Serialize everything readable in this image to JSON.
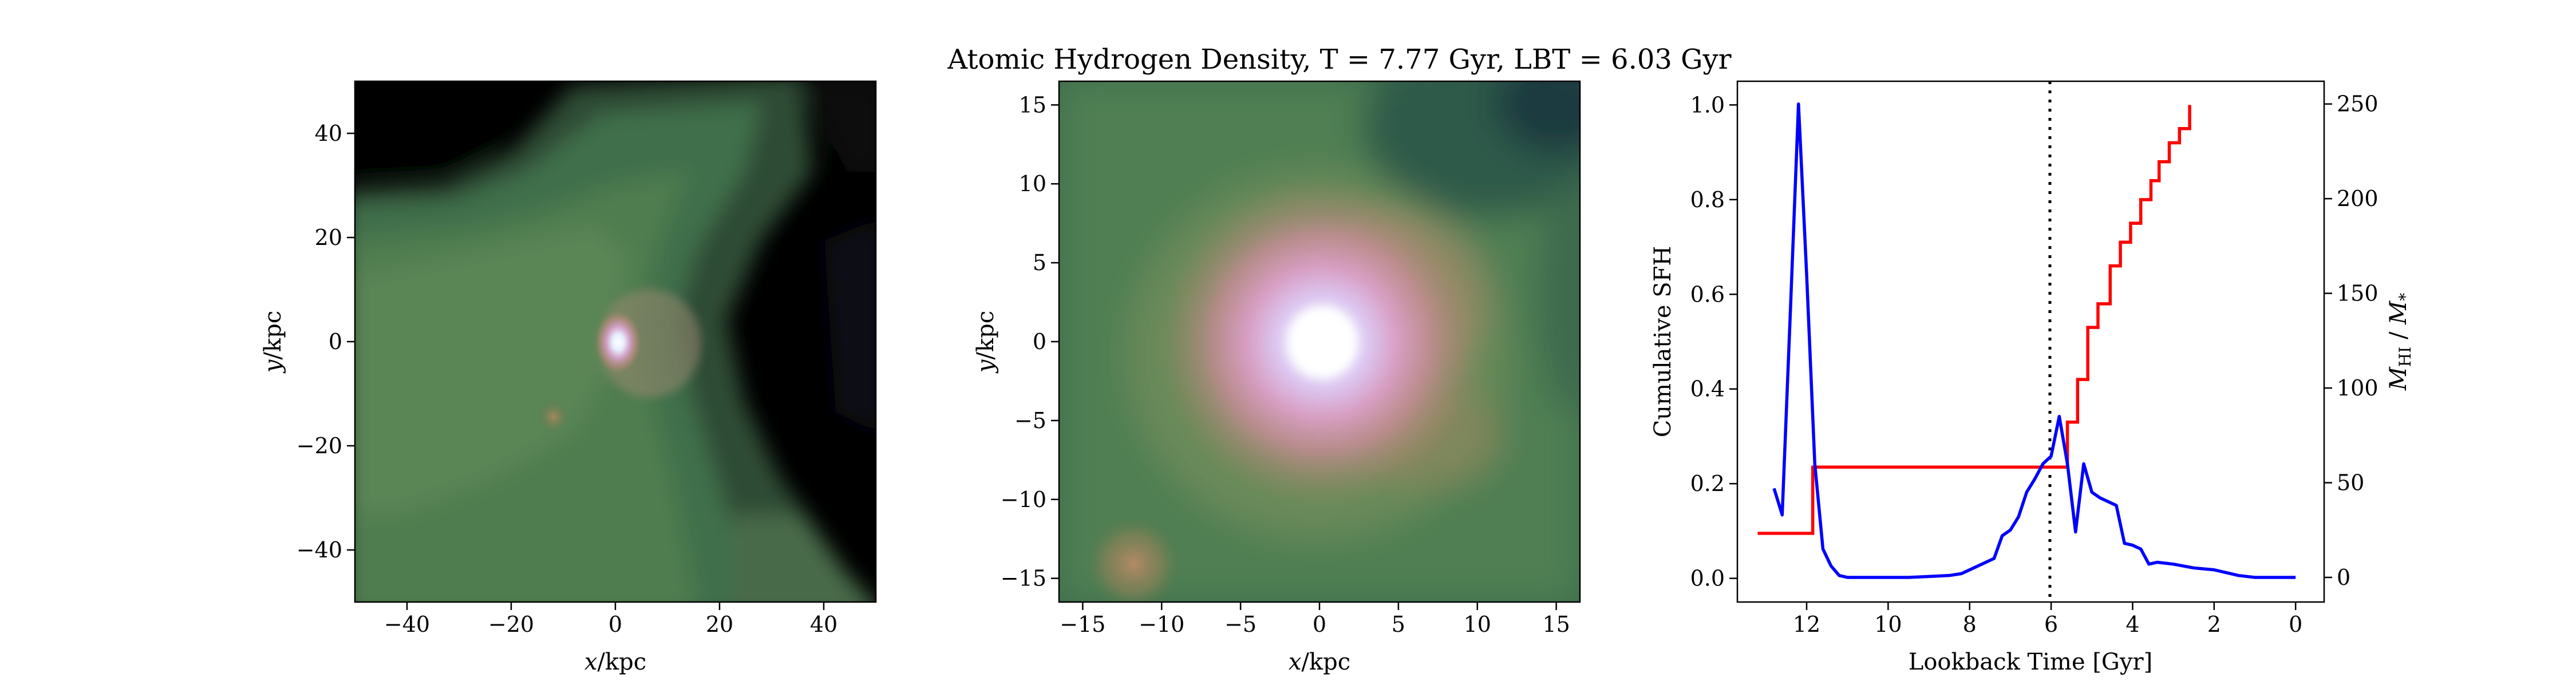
{
  "figure": {
    "title": "Atomic Hydrogen Density, T = 7.77 Gyr, LBT = 6.03 Gyr"
  },
  "chart_data": [
    {
      "type": "heatmap",
      "panel": "left",
      "xlabel_var": "x",
      "xlabel_unit": "/kpc",
      "ylabel_var": "y",
      "ylabel_unit": "/kpc",
      "xlim": [
        -50,
        50
      ],
      "ylim": [
        -50,
        50
      ],
      "xticks": [
        -40,
        -20,
        0,
        20,
        40
      ],
      "yticks": [
        -40,
        -20,
        0,
        20,
        40
      ],
      "colormap": "cubehelix (dark purple → green → pink → white)"
    },
    {
      "type": "heatmap",
      "panel": "middle",
      "xlabel_var": "x",
      "xlabel_unit": "/kpc",
      "ylabel_var": "y",
      "ylabel_unit": "/kpc",
      "xlim": [
        -16.5,
        16.5
      ],
      "ylim": [
        -16.5,
        16.5
      ],
      "xticks": [
        -15,
        -10,
        -5,
        0,
        5,
        10,
        15
      ],
      "yticks": [
        -15,
        -10,
        -5,
        0,
        5,
        10,
        15
      ],
      "colormap": "cubehelix (dark purple → green → pink → white)"
    },
    {
      "type": "line",
      "panel": "right",
      "xlabel": "Lookback Time [Gyr]",
      "ylabel_left": "Cumulative SFH",
      "ylabel_right_main": "M",
      "ylabel_right_sub": "HI",
      "ylabel_right_sep": " / ",
      "ylabel_right_main2": "M",
      "ylabel_right_sub2": "*",
      "xlim": [
        13.7,
        -0.7
      ],
      "ylim_left": [
        -0.05,
        1.05
      ],
      "ylim_right": [
        -13,
        262
      ],
      "xticks": [
        12,
        10,
        8,
        6,
        4,
        2,
        0
      ],
      "yticks_left": [
        0.0,
        0.2,
        0.4,
        0.6,
        0.8,
        1.0
      ],
      "yticks_left_labels": [
        "0.0",
        "0.2",
        "0.4",
        "0.6",
        "0.8",
        "1.0"
      ],
      "yticks_right": [
        0,
        50,
        100,
        150,
        200,
        250
      ],
      "vline_x": 6.03,
      "vline_style": "dotted",
      "series": [
        {
          "axis": "left",
          "color": "#ff0000",
          "step": true,
          "x": [
            13.2,
            12.05,
            11.85,
            10,
            8,
            6.2,
            5.6,
            5.35,
            5.1,
            4.85,
            4.55,
            4.3,
            4.05,
            3.8,
            3.55,
            3.35,
            3.1,
            2.85,
            2.6
          ],
          "y": [
            0.095,
            0.095,
            0.235,
            0.235,
            0.235,
            0.235,
            0.33,
            0.42,
            0.53,
            0.58,
            0.66,
            0.71,
            0.75,
            0.8,
            0.84,
            0.88,
            0.92,
            0.95,
            1.0
          ]
        },
        {
          "axis": "right",
          "color": "#0000ff",
          "step": false,
          "x": [
            12.8,
            12.6,
            12.4,
            12.2,
            12.0,
            11.8,
            11.6,
            11.4,
            11.2,
            11.0,
            10.5,
            10.0,
            9.5,
            9.0,
            8.5,
            8.2,
            8.0,
            7.8,
            7.6,
            7.4,
            7.2,
            7.0,
            6.8,
            6.6,
            6.4,
            6.2,
            6.0,
            5.8,
            5.6,
            5.4,
            5.2,
            5.0,
            4.8,
            4.6,
            4.4,
            4.2,
            4.0,
            3.8,
            3.6,
            3.4,
            3.0,
            2.5,
            2.0,
            1.8,
            1.6,
            1.4,
            1.2,
            1.0,
            0.6,
            0.3,
            0.0
          ],
          "y": [
            47,
            33,
            140,
            250,
            160,
            60,
            15,
            6,
            1,
            0,
            0,
            0,
            0,
            0.5,
            1,
            2,
            4,
            6,
            8,
            10,
            22,
            25,
            32,
            45,
            52,
            60,
            64,
            85,
            60,
            24,
            60,
            45,
            42,
            40,
            38,
            18,
            17,
            15,
            7,
            8,
            7,
            5,
            4,
            3,
            2,
            1,
            0.5,
            0,
            0,
            0,
            0
          ]
        }
      ]
    }
  ]
}
